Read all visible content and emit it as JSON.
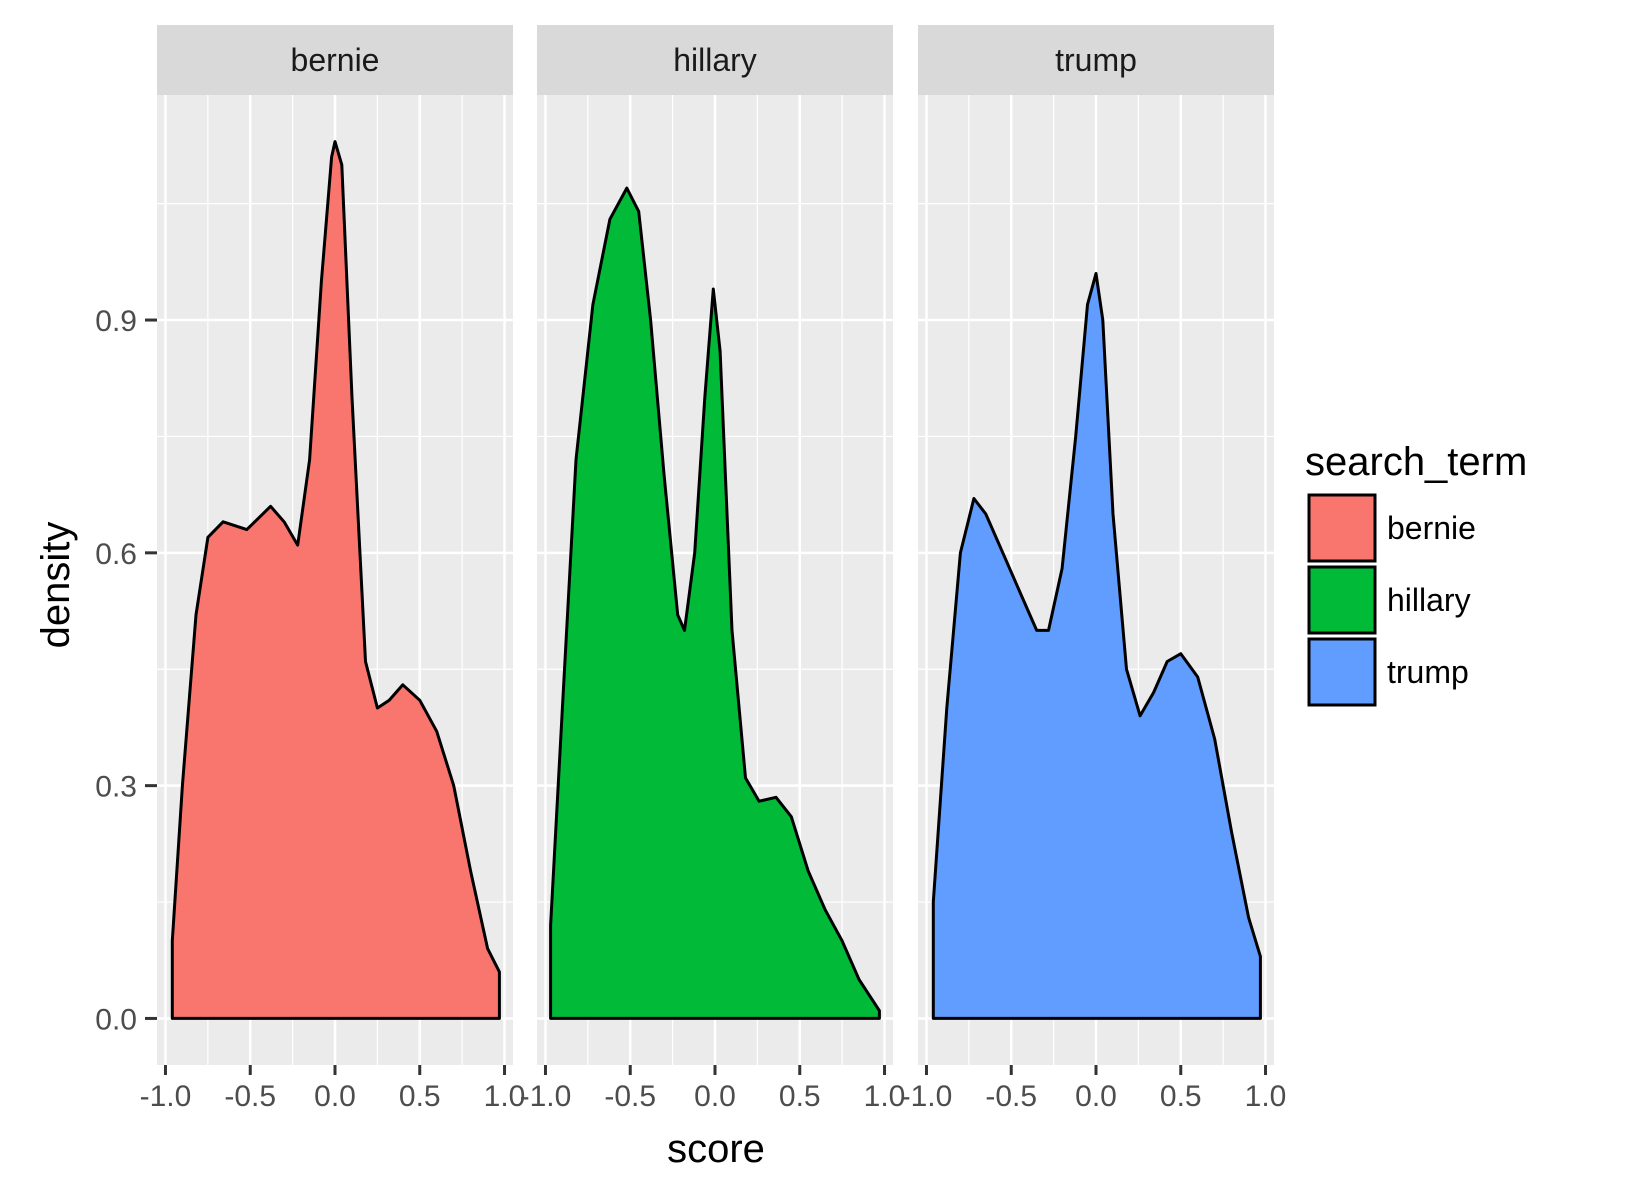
{
  "chart_data": {
    "type": "area",
    "facet_by": "search_term",
    "xlabel": "score",
    "ylabel": "density",
    "xlim": [
      -1.05,
      1.05
    ],
    "ylim": [
      -0.06,
      1.19
    ],
    "x_ticks": [
      -1.0,
      -0.5,
      0.0,
      0.5,
      1.0
    ],
    "x_tick_labels": [
      "-1.0",
      "-0.5",
      "0.0",
      "0.5",
      "1.0"
    ],
    "y_ticks": [
      0.0,
      0.3,
      0.6,
      0.9
    ],
    "y_tick_labels": [
      "0.0",
      "0.3",
      "0.6",
      "0.9"
    ],
    "grid": true,
    "legend": {
      "title": "search_term",
      "position": "right",
      "entries": [
        "bernie",
        "hillary",
        "trump"
      ]
    },
    "series": [
      {
        "name": "bernie",
        "color": "#F8766D",
        "points": [
          [
            -0.96,
            0.0
          ],
          [
            -0.96,
            0.1
          ],
          [
            -0.9,
            0.3
          ],
          [
            -0.82,
            0.52
          ],
          [
            -0.75,
            0.62
          ],
          [
            -0.66,
            0.64
          ],
          [
            -0.52,
            0.63
          ],
          [
            -0.38,
            0.66
          ],
          [
            -0.3,
            0.64
          ],
          [
            -0.22,
            0.61
          ],
          [
            -0.15,
            0.72
          ],
          [
            -0.08,
            0.95
          ],
          [
            -0.02,
            1.11
          ],
          [
            0.0,
            1.13
          ],
          [
            0.04,
            1.1
          ],
          [
            0.1,
            0.8
          ],
          [
            0.18,
            0.46
          ],
          [
            0.25,
            0.4
          ],
          [
            0.32,
            0.41
          ],
          [
            0.4,
            0.43
          ],
          [
            0.5,
            0.41
          ],
          [
            0.6,
            0.37
          ],
          [
            0.7,
            0.3
          ],
          [
            0.8,
            0.19
          ],
          [
            0.9,
            0.09
          ],
          [
            0.97,
            0.06
          ],
          [
            0.97,
            0.0
          ]
        ]
      },
      {
        "name": "hillary",
        "color": "#00BA38",
        "points": [
          [
            -0.97,
            0.0
          ],
          [
            -0.97,
            0.12
          ],
          [
            -0.9,
            0.4
          ],
          [
            -0.82,
            0.72
          ],
          [
            -0.72,
            0.92
          ],
          [
            -0.62,
            1.03
          ],
          [
            -0.52,
            1.07
          ],
          [
            -0.45,
            1.04
          ],
          [
            -0.38,
            0.9
          ],
          [
            -0.3,
            0.7
          ],
          [
            -0.22,
            0.52
          ],
          [
            -0.18,
            0.5
          ],
          [
            -0.12,
            0.6
          ],
          [
            -0.06,
            0.8
          ],
          [
            -0.01,
            0.94
          ],
          [
            0.03,
            0.86
          ],
          [
            0.1,
            0.5
          ],
          [
            0.18,
            0.31
          ],
          [
            0.26,
            0.28
          ],
          [
            0.36,
            0.285
          ],
          [
            0.45,
            0.26
          ],
          [
            0.55,
            0.19
          ],
          [
            0.65,
            0.14
          ],
          [
            0.75,
            0.1
          ],
          [
            0.85,
            0.05
          ],
          [
            0.97,
            0.01
          ],
          [
            0.97,
            0.0
          ]
        ]
      },
      {
        "name": "trump",
        "color": "#619CFF",
        "points": [
          [
            -0.96,
            0.0
          ],
          [
            -0.96,
            0.15
          ],
          [
            -0.88,
            0.4
          ],
          [
            -0.8,
            0.6
          ],
          [
            -0.72,
            0.67
          ],
          [
            -0.65,
            0.65
          ],
          [
            -0.55,
            0.6
          ],
          [
            -0.45,
            0.55
          ],
          [
            -0.35,
            0.5
          ],
          [
            -0.28,
            0.5
          ],
          [
            -0.2,
            0.58
          ],
          [
            -0.12,
            0.75
          ],
          [
            -0.05,
            0.92
          ],
          [
            0.0,
            0.96
          ],
          [
            0.04,
            0.9
          ],
          [
            0.1,
            0.65
          ],
          [
            0.18,
            0.45
          ],
          [
            0.26,
            0.39
          ],
          [
            0.34,
            0.42
          ],
          [
            0.42,
            0.46
          ],
          [
            0.5,
            0.47
          ],
          [
            0.6,
            0.44
          ],
          [
            0.7,
            0.36
          ],
          [
            0.8,
            0.24
          ],
          [
            0.9,
            0.13
          ],
          [
            0.97,
            0.08
          ],
          [
            0.97,
            0.0
          ]
        ]
      }
    ]
  }
}
